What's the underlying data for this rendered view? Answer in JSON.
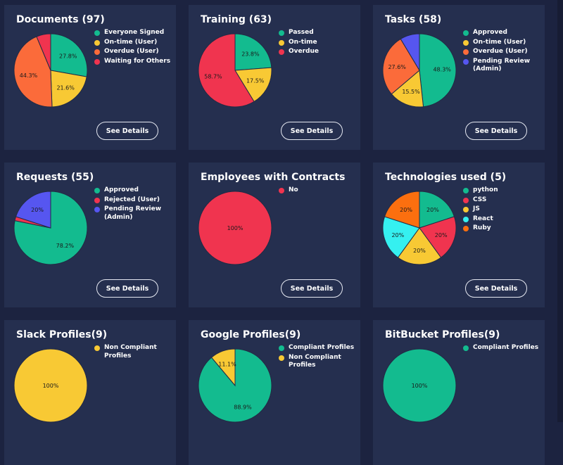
{
  "button_label": "See Details",
  "cards": [
    {
      "title": "Documents (97)",
      "legend": [
        {
          "label": "Everyone Signed",
          "color": "#13bb8f"
        },
        {
          "label": "On-time (User)",
          "color": "#f8c934"
        },
        {
          "label": "Overdue (User)",
          "color": "#fb6b3a"
        },
        {
          "label": "Waiting for Others",
          "color": "#f0344f"
        }
      ],
      "chart_data": {
        "type": "pie",
        "slices": [
          {
            "label": "Everyone Signed",
            "value": 27.8,
            "display": "27.8%",
            "color": "#13bb8f"
          },
          {
            "label": "On-time (User)",
            "value": 21.6,
            "display": "21.6%",
            "color": "#f8c934"
          },
          {
            "label": "Overdue (User)",
            "value": 44.3,
            "display": "44.3%",
            "color": "#fb6b3a"
          },
          {
            "label": "Waiting for Others",
            "value": 6.3,
            "display": "",
            "color": "#f0344f"
          }
        ]
      }
    },
    {
      "title": "Training (63)",
      "legend": [
        {
          "label": "Passed",
          "color": "#13bb8f"
        },
        {
          "label": "On-time",
          "color": "#f8c934"
        },
        {
          "label": "Overdue",
          "color": "#f0344f"
        }
      ],
      "chart_data": {
        "type": "pie",
        "slices": [
          {
            "label": "Passed",
            "value": 23.8,
            "display": "23.8%",
            "color": "#13bb8f"
          },
          {
            "label": "On-time",
            "value": 17.5,
            "display": "17.5%",
            "color": "#f8c934"
          },
          {
            "label": "Overdue",
            "value": 58.7,
            "display": "58.7%",
            "color": "#f0344f"
          }
        ]
      }
    },
    {
      "title": "Tasks (58)",
      "legend": [
        {
          "label": "Approved",
          "color": "#13bb8f"
        },
        {
          "label": "On-time (User)",
          "color": "#f8c934"
        },
        {
          "label": "Overdue (User)",
          "color": "#fb6b3a"
        },
        {
          "label": "Pending Review (Admin)",
          "color": "#5656f0"
        }
      ],
      "chart_data": {
        "type": "pie",
        "slices": [
          {
            "label": "Approved",
            "value": 48.3,
            "display": "48.3%",
            "color": "#13bb8f"
          },
          {
            "label": "On-time (User)",
            "value": 15.5,
            "display": "15.5%",
            "color": "#f8c934"
          },
          {
            "label": "Overdue (User)",
            "value": 27.6,
            "display": "27.6%",
            "color": "#fb6b3a"
          },
          {
            "label": "Pending Review (Admin)",
            "value": 8.6,
            "display": "",
            "color": "#5656f0"
          }
        ]
      }
    },
    {
      "title": "Requests (55)",
      "legend": [
        {
          "label": "Approved",
          "color": "#13bb8f"
        },
        {
          "label": "Rejected (User)",
          "color": "#f0344f"
        },
        {
          "label": "Pending Review (Admin)",
          "color": "#5656f0"
        }
      ],
      "chart_data": {
        "type": "pie",
        "slices": [
          {
            "label": "Approved",
            "value": 78.2,
            "display": "78.2%",
            "color": "#13bb8f"
          },
          {
            "label": "Rejected (User)",
            "value": 1.8,
            "display": "",
            "color": "#f0344f"
          },
          {
            "label": "Pending Review (Admin)",
            "value": 20,
            "display": "20%",
            "color": "#5656f0"
          }
        ]
      }
    },
    {
      "title": "Employees with Contracts",
      "legend": [
        {
          "label": "No",
          "color": "#f0344f"
        }
      ],
      "chart_data": {
        "type": "pie",
        "slices": [
          {
            "label": "No",
            "value": 100,
            "display": "100%",
            "color": "#f0344f"
          }
        ]
      }
    },
    {
      "title": "Technologies used (5)",
      "legend": [
        {
          "label": "python",
          "color": "#13bb8f"
        },
        {
          "label": "CSS",
          "color": "#f0344f"
        },
        {
          "label": "JS",
          "color": "#f8c934"
        },
        {
          "label": "React",
          "color": "#35f0f0"
        },
        {
          "label": "Ruby",
          "color": "#fb6f0f"
        }
      ],
      "chart_data": {
        "type": "pie",
        "slices": [
          {
            "label": "python",
            "value": 20,
            "display": "20%",
            "color": "#13bb8f"
          },
          {
            "label": "CSS",
            "value": 20,
            "display": "20%",
            "color": "#f0344f"
          },
          {
            "label": "JS",
            "value": 20,
            "display": "20%",
            "color": "#f8c934"
          },
          {
            "label": "React",
            "value": 20,
            "display": "20%",
            "color": "#35f0f0"
          },
          {
            "label": "Ruby",
            "value": 20,
            "display": "20%",
            "color": "#fb6f0f"
          }
        ]
      }
    },
    {
      "title": "Slack Profiles(9)",
      "legend": [
        {
          "label": "Non Compliant Profiles",
          "color": "#f8c934"
        }
      ],
      "chart_data": {
        "type": "pie",
        "slices": [
          {
            "label": "Non Compliant Profiles",
            "value": 100,
            "display": "100%",
            "color": "#f8c934"
          }
        ]
      }
    },
    {
      "title": "Google Profiles(9)",
      "legend": [
        {
          "label": "Compliant Profiles",
          "color": "#13bb8f"
        },
        {
          "label": "Non Compliant Profiles",
          "color": "#f8c934"
        }
      ],
      "chart_data": {
        "type": "pie",
        "slices": [
          {
            "label": "Compliant Profiles",
            "value": 88.9,
            "display": "88.9%",
            "color": "#13bb8f"
          },
          {
            "label": "Non Compliant Profiles",
            "value": 11.1,
            "display": "11.1%",
            "color": "#f8c934"
          }
        ]
      }
    },
    {
      "title": "BitBucket Profiles(9)",
      "legend": [
        {
          "label": "Compliant Profiles",
          "color": "#13bb8f"
        }
      ],
      "chart_data": {
        "type": "pie",
        "slices": [
          {
            "label": "Compliant Profiles",
            "value": 100,
            "display": "100%",
            "color": "#13bb8f"
          }
        ]
      }
    }
  ]
}
